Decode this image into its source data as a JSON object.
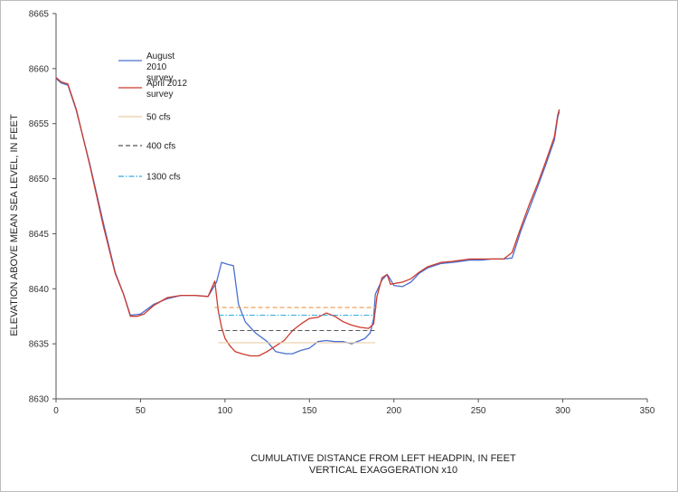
{
  "chart_data": {
    "type": "line",
    "title": "",
    "xlabel": "CUMULATIVE  DISTANCE  FROM LEFT HEADPIN, IN FEET",
    "xlabel_line2": "VERTICAL  EXAGGERATION  x10",
    "ylabel": "ELEVATION  ABOVE MEAN SEA LEVEL,  IN FEET",
    "xlim": [
      0,
      350
    ],
    "ylim": [
      8630,
      8665
    ],
    "xticks": [
      "0",
      "50",
      "100",
      "150",
      "200",
      "250",
      "300",
      "350"
    ],
    "yticks": [
      "8630",
      "8635",
      "8640",
      "8645",
      "8650",
      "8655",
      "8660",
      "8665"
    ],
    "grid": false,
    "legend_position": "top-left, inside plot",
    "series": [
      {
        "name": "August 2010 survey",
        "style": "solid",
        "color": "#4a6fd0",
        "x": [
          0,
          3,
          7,
          12,
          20,
          28,
          35,
          40,
          44,
          50,
          58,
          66,
          74,
          82,
          90,
          95,
          98,
          102,
          105,
          108,
          112,
          118,
          125,
          130,
          136,
          140,
          145,
          150,
          155,
          160,
          165,
          170,
          175,
          180,
          183,
          186,
          188,
          189,
          193,
          196,
          197,
          200,
          205,
          210,
          215,
          220,
          228,
          235,
          240,
          245,
          252,
          258,
          265,
          270,
          275,
          280,
          285,
          290,
          295,
          297,
          298
        ],
        "y": [
          8659.1,
          8658.7,
          8658.5,
          8656.2,
          8651.3,
          8646.0,
          8641.5,
          8639.5,
          8637.6,
          8637.7,
          8638.6,
          8639.1,
          8639.4,
          8639.4,
          8639.3,
          8640.6,
          8642.4,
          8642.2,
          8642.1,
          8638.6,
          8637.0,
          8636.0,
          8635.2,
          8634.3,
          8634.1,
          8634.1,
          8634.4,
          8634.6,
          8635.2,
          8635.3,
          8635.2,
          8635.2,
          8635.0,
          8635.3,
          8635.5,
          8636.0,
          8637.3,
          8639.5,
          8640.8,
          8641.3,
          8641.1,
          8640.3,
          8640.2,
          8640.6,
          8641.4,
          8641.9,
          8642.3,
          8642.4,
          8642.5,
          8642.6,
          8642.6,
          8642.7,
          8642.7,
          8642.8,
          8645.2,
          8647.2,
          8649.2,
          8651.3,
          8653.5,
          8655.6,
          8656.1
        ]
      },
      {
        "name": "April 2012 survey",
        "style": "solid",
        "color": "#cc3a2e",
        "x": [
          0,
          3,
          7,
          12,
          20,
          28,
          35,
          40,
          44,
          48,
          52,
          58,
          66,
          74,
          82,
          90,
          94,
          96,
          98,
          100,
          103,
          106,
          110,
          115,
          120,
          125,
          130,
          135,
          140,
          145,
          150,
          155,
          160,
          165,
          170,
          175,
          180,
          185,
          188,
          190,
          193,
          196,
          198,
          201,
          205,
          210,
          215,
          220,
          228,
          235,
          240,
          245,
          252,
          258,
          265,
          270,
          275,
          280,
          285,
          290,
          295,
          297,
          298
        ],
        "y": [
          8659.2,
          8658.8,
          8658.6,
          8656.3,
          8651.2,
          8645.7,
          8641.4,
          8639.5,
          8637.5,
          8637.5,
          8637.7,
          8638.5,
          8639.2,
          8639.4,
          8639.4,
          8639.3,
          8640.7,
          8638.0,
          8636.5,
          8635.5,
          8634.8,
          8634.3,
          8634.1,
          8633.9,
          8633.9,
          8634.3,
          8634.8,
          8635.3,
          8636.2,
          8636.8,
          8637.3,
          8637.4,
          8637.8,
          8637.5,
          8637.0,
          8636.7,
          8636.5,
          8636.4,
          8636.8,
          8639.3,
          8641.0,
          8641.3,
          8640.4,
          8640.5,
          8640.6,
          8640.9,
          8641.5,
          8642.0,
          8642.4,
          8642.5,
          8642.6,
          8642.7,
          8642.7,
          8642.7,
          8642.7,
          8643.3,
          8645.5,
          8647.6,
          8649.5,
          8651.6,
          8653.8,
          8655.8,
          8656.3
        ]
      },
      {
        "name": "50 cfs",
        "style": "solid",
        "color": "#e9cfa8",
        "x": [
          96,
          189
        ],
        "y": [
          8635.1,
          8635.1
        ]
      },
      {
        "name": "400 cfs",
        "style": "dashed",
        "color": "#555555",
        "x": [
          96,
          189
        ],
        "y": [
          8636.2,
          8636.2
        ]
      },
      {
        "name": "1300 cfs",
        "style": "dashdot",
        "color": "#33aadd",
        "x": [
          96,
          189
        ],
        "y": [
          8637.6,
          8637.6
        ]
      },
      {
        "name": "",
        "style": "dashed",
        "color": "#f08a30",
        "x": [
          94,
          190
        ],
        "y": [
          8638.3,
          8638.3
        ]
      }
    ],
    "legend": [
      {
        "label": "August\n2010\nsurvey",
        "color": "#4a6fd0",
        "style": "solid"
      },
      {
        "label": "April 2012\nsurvey",
        "color": "#cc3a2e",
        "style": "solid"
      },
      {
        "label": "50 cfs",
        "color": "#e9cfa8",
        "style": "solid"
      },
      {
        "label": "400 cfs",
        "color": "#555555",
        "style": "dashed"
      },
      {
        "label": "1300 cfs",
        "color": "#33aadd",
        "style": "dashdot"
      }
    ]
  }
}
